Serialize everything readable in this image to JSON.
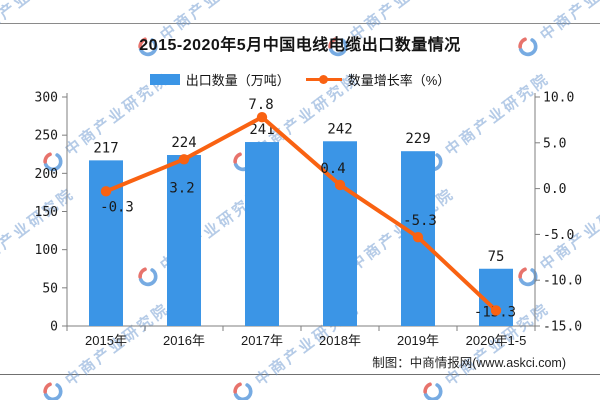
{
  "title": "2015-2020年5月中国电线电缆出口数量情况",
  "legend": [
    {
      "label": "出口数量（万吨）",
      "type": "bar",
      "color": "#3B95E6"
    },
    {
      "label": "数量增长率（%）",
      "type": "line",
      "color": "#F96212"
    }
  ],
  "chart_data": {
    "type": "bar",
    "title": "2015-2020年5月中国电线电缆出口数量情况",
    "categories": [
      "2015年",
      "2016年",
      "2017年",
      "2018年",
      "2019年",
      "2020年1-5"
    ],
    "series": [
      {
        "name": "出口数量（万吨）",
        "type": "bar",
        "axis": "left",
        "color": "#3B95E6",
        "values": [
          217,
          224,
          241,
          242,
          229,
          75
        ]
      },
      {
        "name": "数量增长率（%）",
        "type": "line",
        "axis": "right",
        "color": "#F96212",
        "values": [
          -0.3,
          3.2,
          7.8,
          0.4,
          -5.3,
          -13.3
        ]
      }
    ],
    "left_axis": {
      "min": 0,
      "max": 300,
      "step": 50,
      "ticks": [
        "300",
        "250",
        "200",
        "150",
        "100",
        "50",
        "0"
      ]
    },
    "right_axis": {
      "min": -15,
      "max": 10,
      "step": 5,
      "ticks": [
        "10.0",
        "5.0",
        "0.0",
        "-5.0",
        "-10.0",
        "-15.0"
      ]
    },
    "grid": false,
    "legend_position": "top"
  },
  "footer": {
    "credit": "制图：中商情报网(www.askci.com)"
  },
  "watermark": {
    "text": "中商产业研究院",
    "logo_blue": "#4a90d9",
    "logo_red": "#e0453c"
  },
  "colors": {
    "axis": "#7f7f7f",
    "label": "#1a1a1a"
  }
}
